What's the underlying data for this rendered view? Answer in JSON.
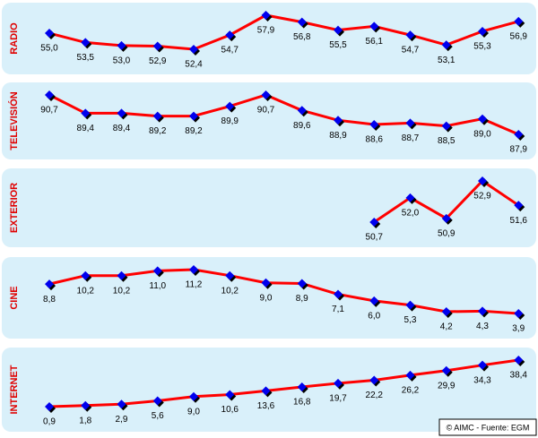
{
  "chart_data": [
    {
      "type": "line",
      "title": "RADIO",
      "color": "#ff0000",
      "marker_color": "#0000ee",
      "values": [
        55.0,
        53.5,
        53.0,
        52.9,
        52.4,
        54.7,
        57.9,
        56.8,
        55.5,
        56.1,
        54.7,
        53.1,
        55.3,
        56.9
      ],
      "value_labels": [
        "55,0",
        "53,5",
        "53,0",
        "52,9",
        "52,4",
        "54,7",
        "57,9",
        "56,8",
        "55,5",
        "56,1",
        "54,7",
        "53,1",
        "55,3",
        "56,9"
      ]
    },
    {
      "type": "line",
      "title": "TELEVISIÓN",
      "color": "#ff0000",
      "marker_color": "#0000ee",
      "values": [
        90.7,
        89.4,
        89.4,
        89.2,
        89.2,
        89.9,
        90.7,
        89.6,
        88.9,
        88.6,
        88.7,
        88.5,
        89.0,
        87.9
      ],
      "value_labels": [
        "90,7",
        "89,4",
        "89,4",
        "89,2",
        "89,2",
        "89,9",
        "90,7",
        "89,6",
        "88,9",
        "88,6",
        "88,7",
        "88,5",
        "89,0",
        "87,9"
      ]
    },
    {
      "type": "line",
      "title": "EXTERIOR",
      "color": "#ff0000",
      "marker_color": "#0000ee",
      "values": [
        null,
        null,
        null,
        null,
        null,
        null,
        null,
        null,
        null,
        50.7,
        52.0,
        50.9,
        52.9,
        51.6
      ],
      "value_labels": [
        null,
        null,
        null,
        null,
        null,
        null,
        null,
        null,
        null,
        "50,7",
        "52,0",
        "50,9",
        "52,9",
        "51,6"
      ]
    },
    {
      "type": "line",
      "title": "CINE",
      "color": "#ff0000",
      "marker_color": "#0000ee",
      "values": [
        8.8,
        10.2,
        10.2,
        11.0,
        11.2,
        10.2,
        9.0,
        8.9,
        7.1,
        6.0,
        5.3,
        4.2,
        4.3,
        3.9
      ],
      "value_labels": [
        "8,8",
        "10,2",
        "10,2",
        "11,0",
        "11,2",
        "10,2",
        "9,0",
        "8,9",
        "7,1",
        "6,0",
        "5,3",
        "4,2",
        "4,3",
        "3,9"
      ]
    },
    {
      "type": "line",
      "title": "INTERNET",
      "color": "#ff0000",
      "marker_color": "#0000ee",
      "values": [
        0.9,
        1.8,
        2.9,
        5.6,
        9.0,
        10.6,
        13.6,
        16.8,
        19.7,
        22.2,
        26.2,
        29.9,
        34.3,
        38.4
      ],
      "value_labels": [
        "0,9",
        "1,8",
        "2,9",
        "5,6",
        "9,0",
        "10,6",
        "13,6",
        "16,8",
        "19,7",
        "22,2",
        "26,2",
        "29,9",
        "34,3",
        "38,4"
      ]
    }
  ],
  "credit": "© AIMC - Fuente: EGM"
}
